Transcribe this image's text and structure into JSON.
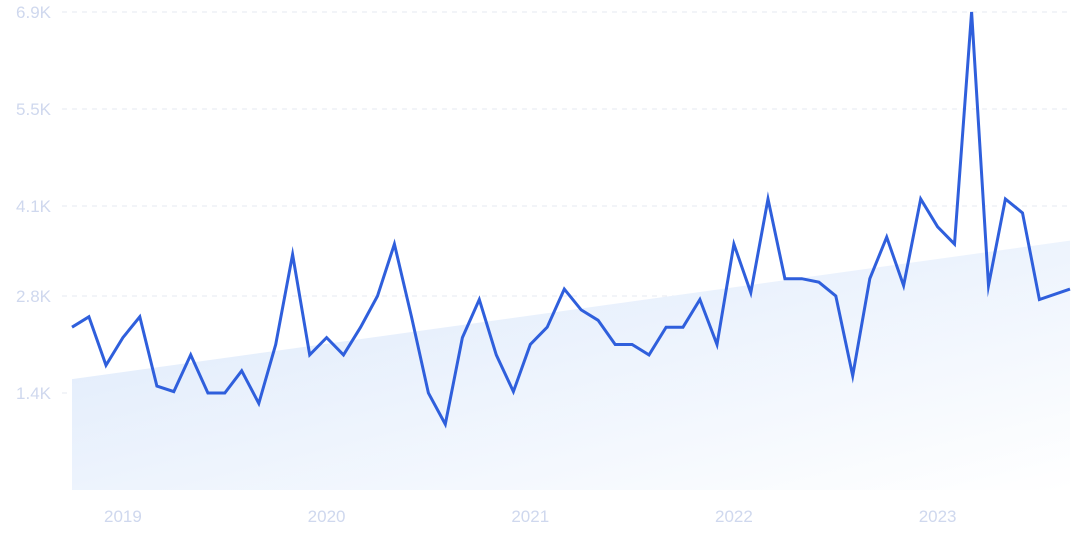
{
  "chart_data": {
    "type": "line",
    "title": "",
    "xlabel": "",
    "ylabel": "",
    "x_range": [
      2018.8,
      2023.7
    ],
    "ylim": [
      0,
      6.9
    ],
    "y_ticks": [
      {
        "value": 1.4,
        "label": "1.4K"
      },
      {
        "value": 2.8,
        "label": "2.8K"
      },
      {
        "value": 4.1,
        "label": "4.1K"
      },
      {
        "value": 5.5,
        "label": "5.5K"
      },
      {
        "value": 6.9,
        "label": "6.9K"
      }
    ],
    "x_ticks": [
      {
        "value": 2019,
        "label": "2019"
      },
      {
        "value": 2020,
        "label": "2020"
      },
      {
        "value": 2021,
        "label": "2021"
      },
      {
        "value": 2022,
        "label": "2022"
      },
      {
        "value": 2023,
        "label": "2023"
      }
    ],
    "grid": true,
    "legend": "none",
    "colors": {
      "line": "#2f5fdc",
      "trend_fill_start": "#dbe8fb",
      "trend_fill_end": "#ffffff"
    },
    "trend": {
      "start": 1.6,
      "end": 3.6
    },
    "series": [
      {
        "x": [
          2018.8,
          2018.883,
          2018.967,
          2019.05,
          2019.133,
          2019.217,
          2019.3,
          2019.383,
          2019.467,
          2019.55,
          2019.633,
          2019.717,
          2019.8,
          2019.883,
          2019.967,
          2020.05,
          2020.133,
          2020.217,
          2020.3,
          2020.383,
          2020.467,
          2020.55,
          2020.633,
          2020.717,
          2020.8,
          2020.883,
          2020.967,
          2021.05,
          2021.133,
          2021.217,
          2021.3,
          2021.383,
          2021.467,
          2021.55,
          2021.633,
          2021.717,
          2021.8,
          2021.883,
          2021.967,
          2022.05,
          2022.133,
          2022.217,
          2022.3,
          2022.383,
          2022.467,
          2022.55,
          2022.633,
          2022.717,
          2022.8,
          2022.883,
          2022.967,
          2023.05,
          2023.133,
          2023.217,
          2023.3,
          2023.383,
          2023.467,
          2023.55,
          2023.7
        ],
        "values": [
          2.35,
          2.5,
          1.8,
          2.2,
          2.5,
          1.5,
          1.42,
          1.95,
          1.4,
          1.4,
          1.72,
          1.25,
          2.1,
          3.4,
          1.95,
          2.2,
          1.95,
          2.35,
          2.8,
          3.55,
          2.5,
          1.4,
          0.95,
          2.2,
          2.75,
          1.95,
          1.42,
          2.1,
          2.35,
          2.9,
          2.6,
          2.45,
          2.1,
          2.1,
          1.95,
          2.35,
          2.35,
          2.75,
          2.1,
          3.55,
          2.85,
          4.2,
          3.05,
          3.05,
          3.0,
          2.8,
          1.65,
          3.05,
          3.65,
          2.95,
          4.2,
          3.8,
          3.55,
          6.9,
          2.95,
          4.2,
          4.0,
          2.75,
          2.9
        ]
      }
    ]
  }
}
